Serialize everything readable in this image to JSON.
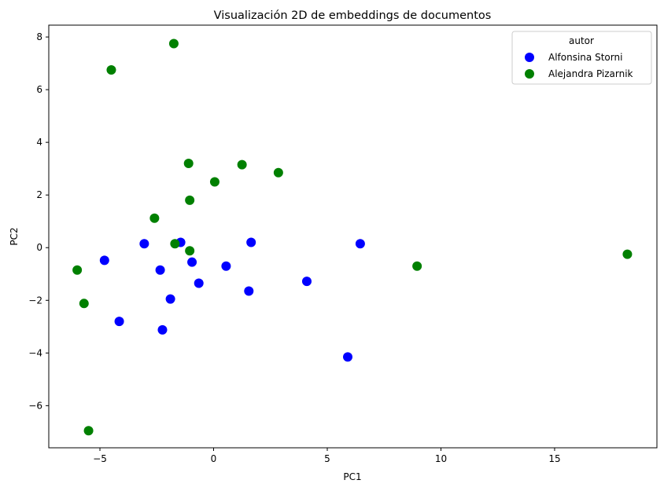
{
  "chart_data": {
    "type": "scatter",
    "title": "Visualización 2D de embeddings de documentos",
    "xlabel": "PC1",
    "ylabel": "PC2",
    "xlim": [
      -7.25,
      19.5
    ],
    "ylim": [
      -7.6,
      8.45
    ],
    "xticks": [
      -5,
      0,
      5,
      10,
      15
    ],
    "yticks": [
      -6,
      -4,
      -2,
      0,
      2,
      4,
      6,
      8
    ],
    "xtick_labels": [
      "−5",
      "0",
      "5",
      "10",
      "15"
    ],
    "ytick_labels": [
      "−6",
      "−4",
      "−2",
      "0",
      "2",
      "4",
      "6",
      "8"
    ],
    "grid": false,
    "legend": {
      "title": "autor",
      "placement": "top-right"
    },
    "series": [
      {
        "name": "Alfonsina Storni",
        "color": "#0000ff",
        "points": [
          [
            -3.05,
            0.15
          ],
          [
            -4.8,
            -0.48
          ],
          [
            -2.35,
            -0.85
          ],
          [
            -1.45,
            0.2
          ],
          [
            -0.95,
            -0.55
          ],
          [
            -0.65,
            -1.35
          ],
          [
            -1.9,
            -1.95
          ],
          [
            -2.25,
            -3.12
          ],
          [
            -4.15,
            -2.8
          ],
          [
            0.55,
            -0.7
          ],
          [
            1.65,
            0.2
          ],
          [
            1.55,
            -1.65
          ],
          [
            4.1,
            -1.28
          ],
          [
            6.45,
            0.15
          ],
          [
            5.9,
            -4.15
          ]
        ]
      },
      {
        "name": "Alejandra Pizarnik",
        "color": "#008000",
        "points": [
          [
            -1.75,
            7.75
          ],
          [
            -4.5,
            6.75
          ],
          [
            -1.1,
            3.2
          ],
          [
            1.25,
            3.15
          ],
          [
            2.85,
            2.85
          ],
          [
            0.05,
            2.5
          ],
          [
            -1.05,
            1.8
          ],
          [
            -2.6,
            1.12
          ],
          [
            -1.7,
            0.15
          ],
          [
            -1.05,
            -0.12
          ],
          [
            -6.0,
            -0.85
          ],
          [
            -5.7,
            -2.12
          ],
          [
            -5.5,
            -6.95
          ],
          [
            8.95,
            -0.7
          ],
          [
            18.2,
            -0.25
          ]
        ]
      }
    ]
  }
}
